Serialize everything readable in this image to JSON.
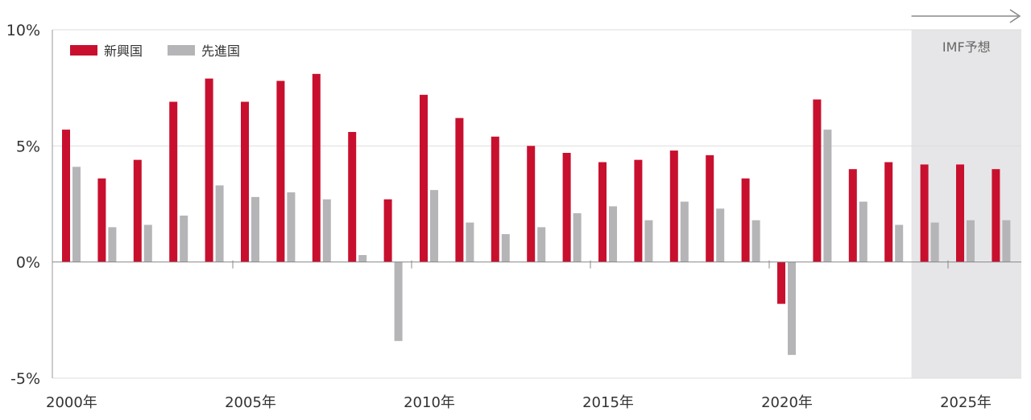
{
  "chart_data": {
    "type": "bar",
    "title": "",
    "xlabel": "",
    "ylabel": "",
    "ylim": [
      -5,
      10
    ],
    "yticks": [
      "10%",
      "5%",
      "0%",
      "-5%"
    ],
    "ytick_values": [
      10,
      5,
      0,
      -5
    ],
    "x_tick_labels": [
      {
        "year": 2000,
        "label": "2000年"
      },
      {
        "year": 2005,
        "label": "2005年"
      },
      {
        "year": 2010,
        "label": "2010年"
      },
      {
        "year": 2015,
        "label": "2015年"
      },
      {
        "year": 2020,
        "label": "2020年"
      },
      {
        "year": 2025,
        "label": "2025年"
      }
    ],
    "categories": [
      2000,
      2001,
      2002,
      2003,
      2004,
      2005,
      2006,
      2007,
      2008,
      2009,
      2010,
      2011,
      2012,
      2013,
      2014,
      2015,
      2016,
      2017,
      2018,
      2019,
      2020,
      2021,
      2022,
      2023,
      2024,
      2025,
      2026
    ],
    "series": [
      {
        "name": "新興国",
        "color": "#c8102e",
        "values": [
          5.7,
          3.6,
          4.4,
          6.9,
          7.9,
          6.9,
          7.8,
          8.1,
          5.6,
          2.7,
          7.2,
          6.2,
          5.4,
          5.0,
          4.7,
          4.3,
          4.4,
          4.8,
          4.6,
          3.6,
          -1.8,
          7.0,
          4.0,
          4.3,
          4.2,
          4.2,
          4.0
        ]
      },
      {
        "name": "先進国",
        "color": "#b5b5b8",
        "values": [
          4.1,
          1.5,
          1.6,
          2.0,
          3.3,
          2.8,
          3.0,
          2.7,
          0.3,
          -3.4,
          3.1,
          1.7,
          1.2,
          1.5,
          2.1,
          2.4,
          1.8,
          2.6,
          2.3,
          1.8,
          -4.0,
          5.7,
          2.6,
          1.6,
          1.7,
          1.8,
          1.8
        ]
      }
    ],
    "forecast": {
      "label": "IMF予想",
      "from_year": 2024,
      "shade_color": "#e6e6e8",
      "arrow_color": "#888888"
    },
    "grid": true,
    "legend": {
      "position": "top-left"
    }
  }
}
